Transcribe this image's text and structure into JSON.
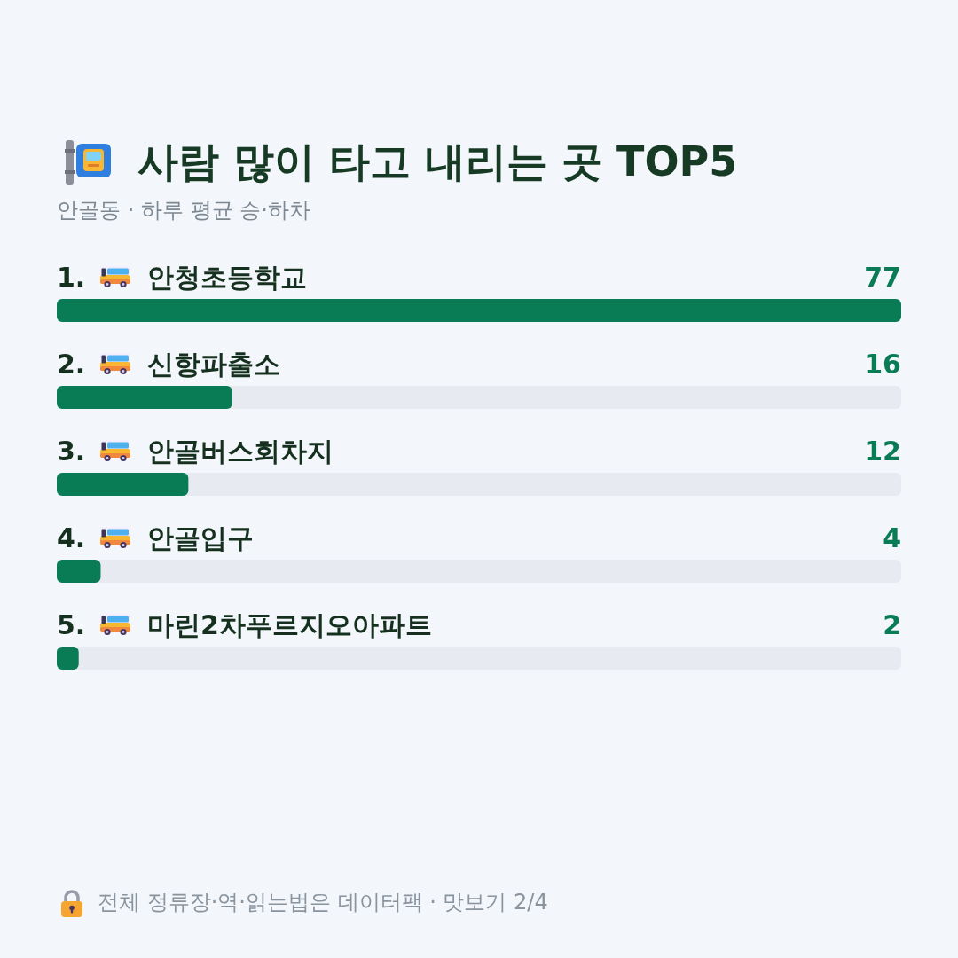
{
  "chart_data": {
    "type": "bar",
    "orientation": "horizontal",
    "title": "사람 많이 타고 내리는 곳 TOP5",
    "subtitle": "안골동 · 하루 평균 승·하차",
    "categories": [
      "1. 안청초등학교",
      "2. 신항파출소",
      "3. 안골버스회차지",
      "4. 안골입구",
      "5. 마린2차푸르지오아파트"
    ],
    "values": [
      77,
      16,
      12,
      4,
      2
    ],
    "color": "#0a7c55",
    "xlim": [
      0,
      77
    ],
    "data_labels": true,
    "grid": false,
    "tick_labels": "y",
    "annotations": [
      "전체 정류장·역·읽는법은 데이터팩 · 맛보기 2/4"
    ]
  }
}
